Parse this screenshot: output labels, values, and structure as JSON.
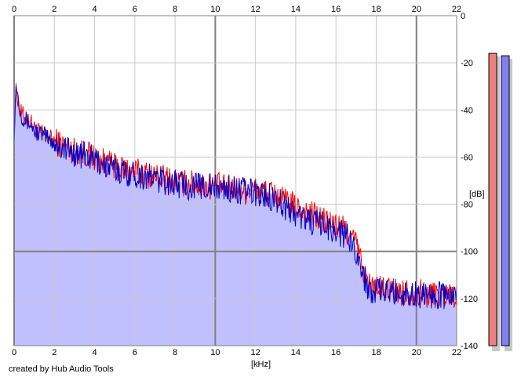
{
  "chart_data": {
    "type": "area",
    "x_unit": "[kHz]",
    "y_unit": "[dB]",
    "xlim": [
      0,
      22
    ],
    "ylim": [
      -140,
      0
    ],
    "x_ticks": [
      "0",
      "2",
      "4",
      "6",
      "8",
      "10",
      "12",
      "14",
      "16",
      "18",
      "20",
      "22"
    ],
    "y_ticks": [
      "0",
      "-20",
      "-40",
      "-60",
      "-80",
      "-100",
      "-120",
      "-140"
    ],
    "grid": true,
    "series": [
      {
        "color": "#ff0000",
        "x": [
          0,
          0.1,
          0.2,
          0.3,
          0.5,
          0.8,
          1.0,
          1.5,
          2.0,
          2.5,
          3.0,
          3.5,
          4.0,
          4.5,
          5.0,
          5.5,
          6.0,
          6.5,
          7.0,
          7.5,
          8.0,
          8.5,
          9.0,
          9.5,
          10.0,
          10.5,
          11.0,
          11.5,
          12.0,
          12.5,
          13.0,
          13.5,
          14.0,
          14.5,
          15.0,
          15.5,
          16.0,
          16.5,
          17.0,
          17.3,
          17.6,
          18.0,
          18.5,
          19.0,
          19.5,
          20.0,
          20.5,
          21.0,
          21.5,
          22.0
        ],
        "y": [
          -47,
          -30,
          -36,
          -40,
          -42,
          -44,
          -47,
          -50,
          -52,
          -54,
          -56,
          -57,
          -59,
          -61,
          -63,
          -64,
          -65,
          -66,
          -67,
          -68,
          -69,
          -70,
          -70,
          -71,
          -71,
          -72,
          -72,
          -73,
          -73,
          -74,
          -75,
          -78,
          -80,
          -82,
          -84,
          -86,
          -88,
          -90,
          -95,
          -105,
          -113,
          -115,
          -115,
          -116,
          -116,
          -116,
          -117,
          -117,
          -117,
          -117
        ]
      },
      {
        "color": "#0000cc",
        "x": [
          0,
          0.1,
          0.2,
          0.3,
          0.5,
          0.8,
          1.0,
          1.5,
          2.0,
          2.5,
          3.0,
          3.5,
          4.0,
          4.5,
          5.0,
          5.5,
          6.0,
          6.5,
          7.0,
          7.5,
          8.0,
          8.5,
          9.0,
          9.5,
          10.0,
          10.5,
          11.0,
          11.5,
          12.0,
          12.5,
          13.0,
          13.5,
          14.0,
          14.5,
          15.0,
          15.5,
          16.0,
          16.5,
          17.0,
          17.3,
          17.6,
          18.0,
          18.5,
          19.0,
          19.5,
          20.0,
          20.5,
          21.0,
          21.5,
          22.0
        ],
        "y": [
          -50,
          -28,
          -34,
          -40,
          -43,
          -45,
          -48,
          -50,
          -53,
          -55,
          -57,
          -58,
          -60,
          -62,
          -64,
          -65,
          -66,
          -67,
          -68,
          -69,
          -70,
          -71,
          -71,
          -71,
          -72,
          -72,
          -73,
          -73,
          -74,
          -75,
          -76,
          -80,
          -83,
          -85,
          -87,
          -88,
          -90,
          -92,
          -98,
          -108,
          -114,
          -116,
          -116,
          -116,
          -117,
          -117,
          -117,
          -117,
          -118,
          -118
        ]
      }
    ],
    "level_meters": [
      {
        "color": "#f08080",
        "value_db": -16
      },
      {
        "color": "#8080f0",
        "value_db": -17
      }
    ]
  },
  "colors": {
    "plot_background": "#ffffff",
    "area_fill": "#c0c0ff",
    "grid_major": "#808080",
    "grid_minor": "#c8c8c8",
    "meter_shadow": "#c8c8c8"
  },
  "credit": "created by Hub Audio Tools"
}
